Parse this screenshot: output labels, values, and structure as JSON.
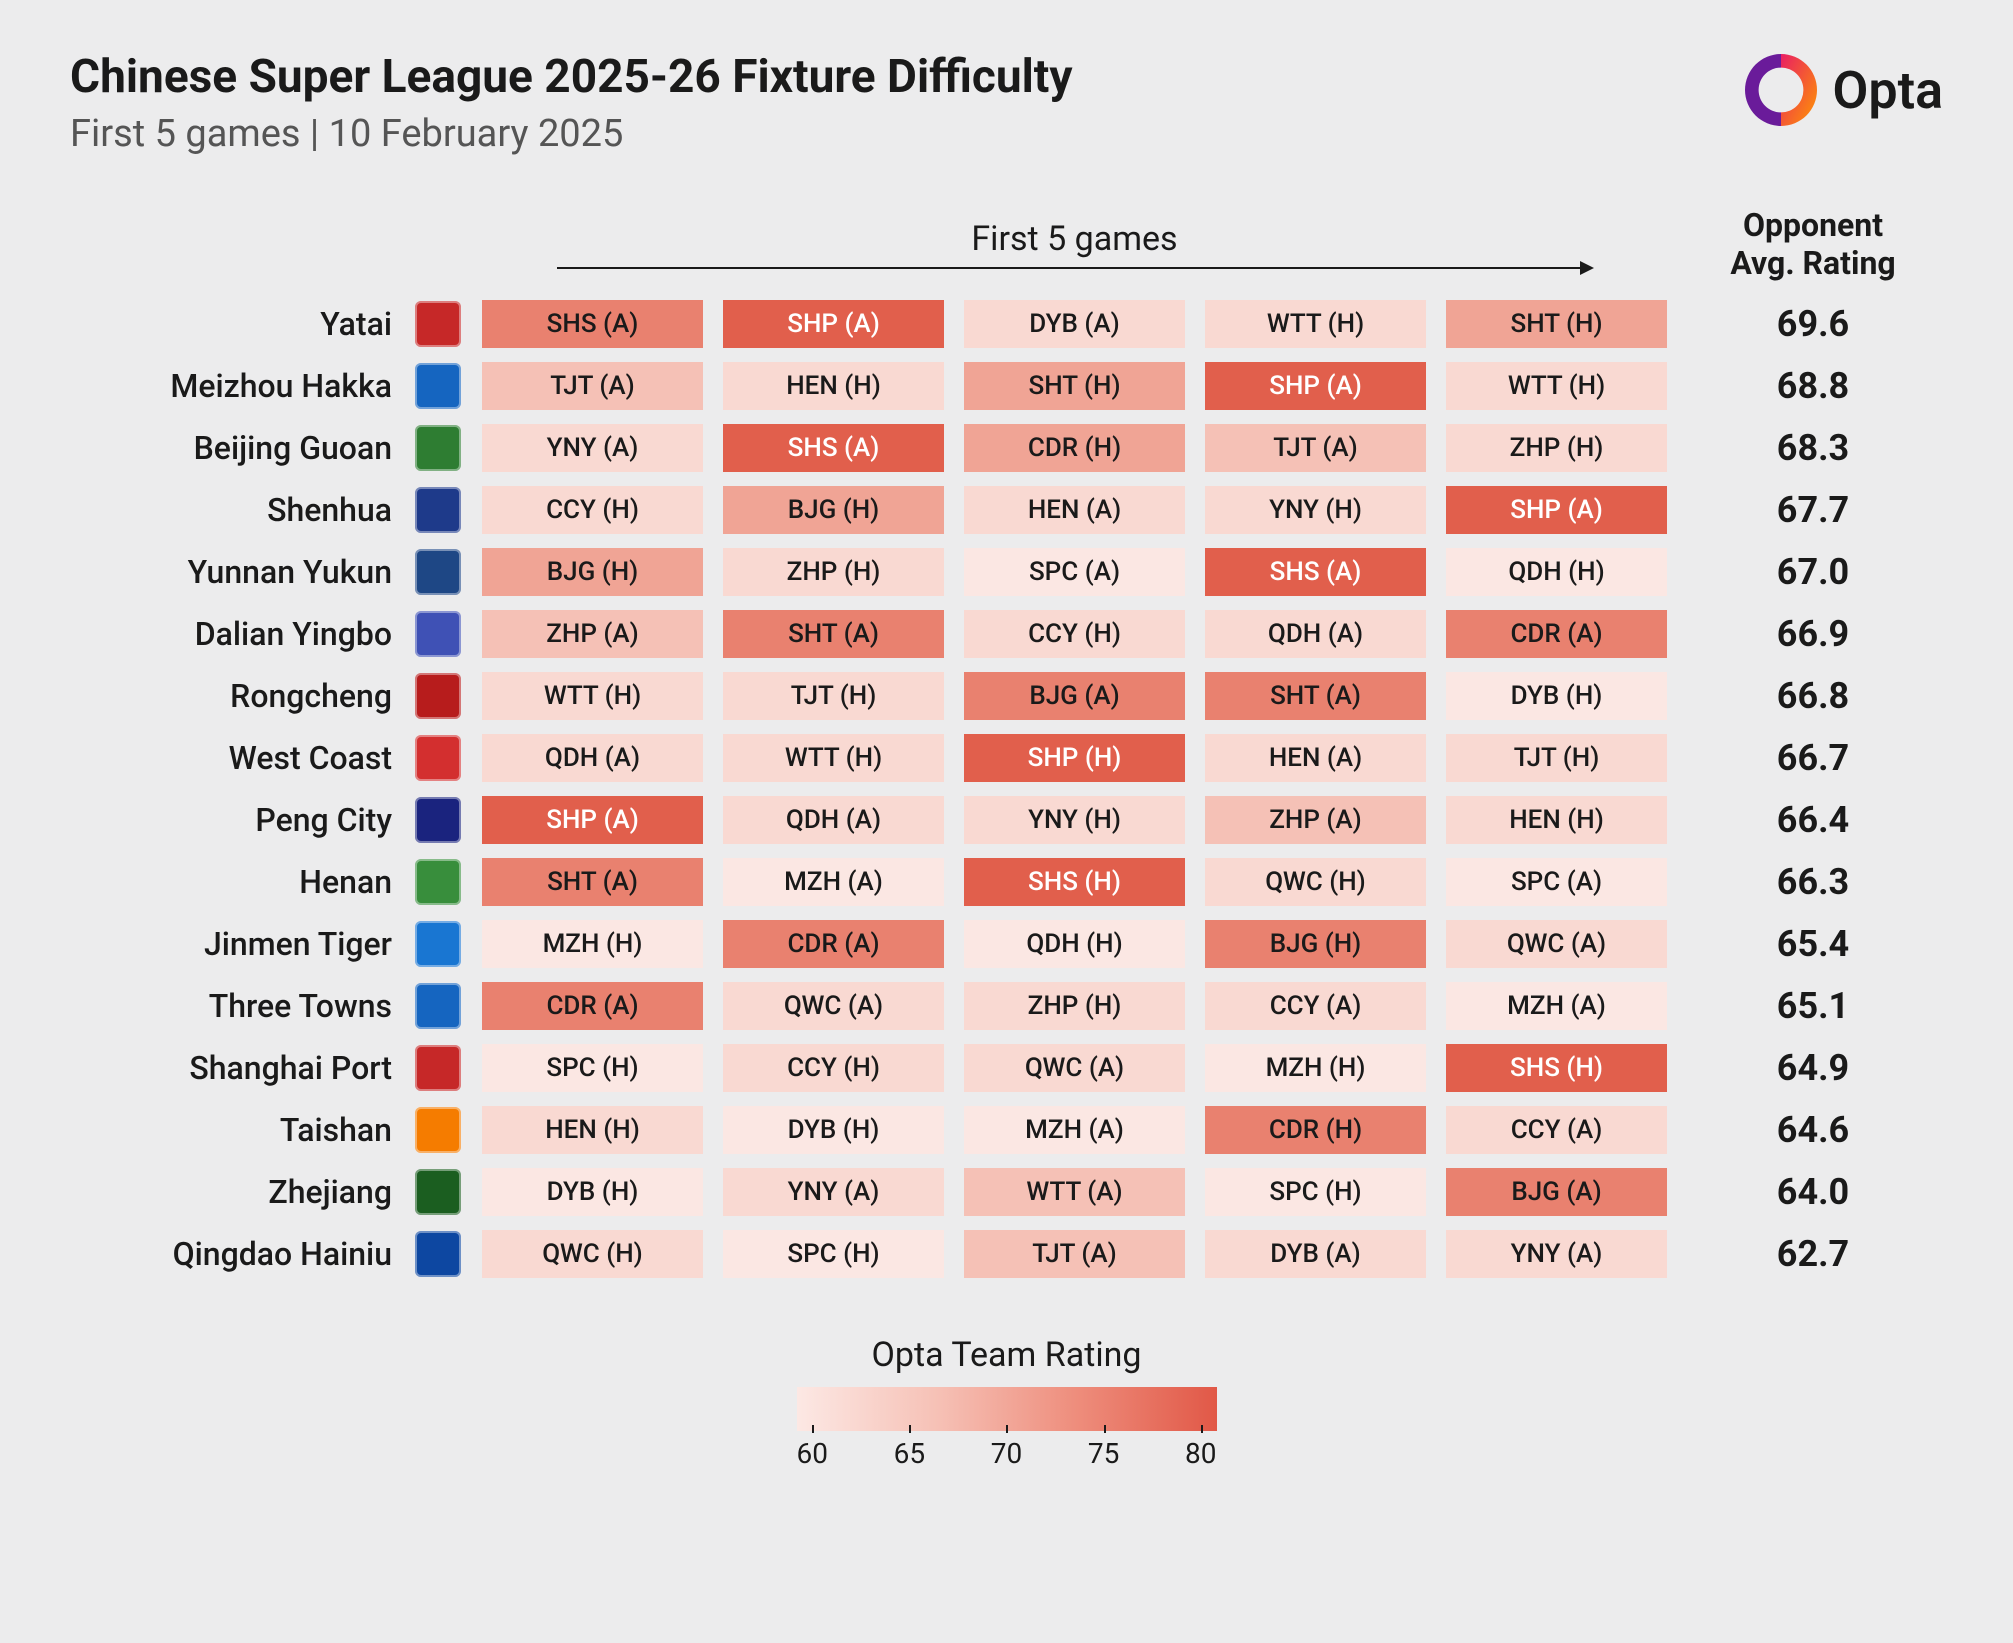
{
  "title": "Chinese Super League 2025-26 Fixture Difficulty",
  "subtitle": "First 5 games | 10 February 2025",
  "brand": "Opta",
  "columns_header": "First 5 games",
  "rating_header_line1": "Opponent",
  "rating_header_line2": "Avg. Rating",
  "legend": {
    "title": "Opta Team Rating",
    "ticks": [
      "60",
      "65",
      "70",
      "75",
      "80"
    ],
    "gradient_start": "#fce8e4",
    "gradient_end": "#e15847"
  },
  "difficulty_scale": {
    "min": 60,
    "max": 80,
    "white_text_threshold": 73
  },
  "cell_colors": {
    "lvl1": "#fbe7e3",
    "lvl2": "#f9d9d2",
    "lvl3": "#f5c1b6",
    "lvl4": "#f0a495",
    "lvl5": "#e9816f",
    "lvl6": "#e15f4c"
  },
  "teams": [
    {
      "name": "Yatai",
      "crest_bg": "#c62828",
      "rating": "69.6",
      "fixtures": [
        {
          "label": "SHS (A)",
          "lvl": 5
        },
        {
          "label": "SHP (A)",
          "lvl": 6
        },
        {
          "label": "DYB (A)",
          "lvl": 2
        },
        {
          "label": "WTT (H)",
          "lvl": 2
        },
        {
          "label": "SHT (H)",
          "lvl": 4
        }
      ]
    },
    {
      "name": "Meizhou Hakka",
      "crest_bg": "#1565c0",
      "rating": "68.8",
      "fixtures": [
        {
          "label": "TJT (A)",
          "lvl": 3
        },
        {
          "label": "HEN (H)",
          "lvl": 2
        },
        {
          "label": "SHT (H)",
          "lvl": 4
        },
        {
          "label": "SHP (A)",
          "lvl": 6
        },
        {
          "label": "WTT (H)",
          "lvl": 2
        }
      ]
    },
    {
      "name": "Beijing Guoan",
      "crest_bg": "#2e7d32",
      "rating": "68.3",
      "fixtures": [
        {
          "label": "YNY (A)",
          "lvl": 2
        },
        {
          "label": "SHS (A)",
          "lvl": 6
        },
        {
          "label": "CDR (H)",
          "lvl": 4
        },
        {
          "label": "TJT (A)",
          "lvl": 3
        },
        {
          "label": "ZHP (H)",
          "lvl": 2
        }
      ]
    },
    {
      "name": "Shenhua",
      "crest_bg": "#1e3a8a",
      "rating": "67.7",
      "fixtures": [
        {
          "label": "CCY (H)",
          "lvl": 2
        },
        {
          "label": "BJG (H)",
          "lvl": 4
        },
        {
          "label": "HEN (A)",
          "lvl": 2
        },
        {
          "label": "YNY (H)",
          "lvl": 2
        },
        {
          "label": "SHP (A)",
          "lvl": 6
        }
      ]
    },
    {
      "name": "Yunnan Yukun",
      "crest_bg": "#1e4785",
      "rating": "67.0",
      "fixtures": [
        {
          "label": "BJG (H)",
          "lvl": 4
        },
        {
          "label": "ZHP (H)",
          "lvl": 2
        },
        {
          "label": "SPC (A)",
          "lvl": 1
        },
        {
          "label": "SHS (A)",
          "lvl": 6
        },
        {
          "label": "QDH (H)",
          "lvl": 1
        }
      ]
    },
    {
      "name": "Dalian Yingbo",
      "crest_bg": "#3f51b5",
      "rating": "66.9",
      "fixtures": [
        {
          "label": "ZHP (A)",
          "lvl": 3
        },
        {
          "label": "SHT (A)",
          "lvl": 5
        },
        {
          "label": "CCY (H)",
          "lvl": 2
        },
        {
          "label": "QDH (A)",
          "lvl": 2
        },
        {
          "label": "CDR (A)",
          "lvl": 5
        }
      ]
    },
    {
      "name": "Rongcheng",
      "crest_bg": "#b71c1c",
      "rating": "66.8",
      "fixtures": [
        {
          "label": "WTT (H)",
          "lvl": 2
        },
        {
          "label": "TJT (H)",
          "lvl": 2
        },
        {
          "label": "BJG (A)",
          "lvl": 5
        },
        {
          "label": "SHT (A)",
          "lvl": 5
        },
        {
          "label": "DYB (H)",
          "lvl": 1
        }
      ]
    },
    {
      "name": "West Coast",
      "crest_bg": "#d32f2f",
      "rating": "66.7",
      "fixtures": [
        {
          "label": "QDH (A)",
          "lvl": 2
        },
        {
          "label": "WTT (H)",
          "lvl": 2
        },
        {
          "label": "SHP (H)",
          "lvl": 6
        },
        {
          "label": "HEN (A)",
          "lvl": 2
        },
        {
          "label": "TJT (H)",
          "lvl": 2
        }
      ]
    },
    {
      "name": "Peng City",
      "crest_bg": "#1a237e",
      "rating": "66.4",
      "fixtures": [
        {
          "label": "SHP (A)",
          "lvl": 6
        },
        {
          "label": "QDH (A)",
          "lvl": 2
        },
        {
          "label": "YNY (H)",
          "lvl": 2
        },
        {
          "label": "ZHP (A)",
          "lvl": 3
        },
        {
          "label": "HEN (H)",
          "lvl": 2
        }
      ]
    },
    {
      "name": "Henan",
      "crest_bg": "#388e3c",
      "rating": "66.3",
      "fixtures": [
        {
          "label": "SHT (A)",
          "lvl": 5
        },
        {
          "label": "MZH (A)",
          "lvl": 1
        },
        {
          "label": "SHS (H)",
          "lvl": 6
        },
        {
          "label": "QWC (H)",
          "lvl": 2
        },
        {
          "label": "SPC (A)",
          "lvl": 1
        }
      ]
    },
    {
      "name": "Jinmen Tiger",
      "crest_bg": "#1976d2",
      "rating": "65.4",
      "fixtures": [
        {
          "label": "MZH (H)",
          "lvl": 1
        },
        {
          "label": "CDR (A)",
          "lvl": 5
        },
        {
          "label": "QDH (H)",
          "lvl": 1
        },
        {
          "label": "BJG (H)",
          "lvl": 5
        },
        {
          "label": "QWC (A)",
          "lvl": 2
        }
      ]
    },
    {
      "name": "Three Towns",
      "crest_bg": "#1565c0",
      "rating": "65.1",
      "fixtures": [
        {
          "label": "CDR (A)",
          "lvl": 5
        },
        {
          "label": "QWC (A)",
          "lvl": 2
        },
        {
          "label": "ZHP (H)",
          "lvl": 2
        },
        {
          "label": "CCY (A)",
          "lvl": 2
        },
        {
          "label": "MZH (A)",
          "lvl": 1
        }
      ]
    },
    {
      "name": "Shanghai Port",
      "crest_bg": "#c62828",
      "rating": "64.9",
      "fixtures": [
        {
          "label": "SPC (H)",
          "lvl": 1
        },
        {
          "label": "CCY (H)",
          "lvl": 2
        },
        {
          "label": "QWC (A)",
          "lvl": 2
        },
        {
          "label": "MZH (H)",
          "lvl": 1
        },
        {
          "label": "SHS (H)",
          "lvl": 6
        }
      ]
    },
    {
      "name": "Taishan",
      "crest_bg": "#f57c00",
      "rating": "64.6",
      "fixtures": [
        {
          "label": "HEN (H)",
          "lvl": 2
        },
        {
          "label": "DYB (H)",
          "lvl": 1
        },
        {
          "label": "MZH (A)",
          "lvl": 1
        },
        {
          "label": "CDR (H)",
          "lvl": 5
        },
        {
          "label": "CCY (A)",
          "lvl": 2
        }
      ]
    },
    {
      "name": "Zhejiang",
      "crest_bg": "#1b5e20",
      "rating": "64.0",
      "fixtures": [
        {
          "label": "DYB (H)",
          "lvl": 1
        },
        {
          "label": "YNY (A)",
          "lvl": 2
        },
        {
          "label": "WTT (A)",
          "lvl": 3
        },
        {
          "label": "SPC (H)",
          "lvl": 1
        },
        {
          "label": "BJG (A)",
          "lvl": 5
        }
      ]
    },
    {
      "name": "Qingdao Hainiu",
      "crest_bg": "#0d47a1",
      "rating": "62.7",
      "fixtures": [
        {
          "label": "QWC (H)",
          "lvl": 2
        },
        {
          "label": "SPC (H)",
          "lvl": 1
        },
        {
          "label": "TJT (A)",
          "lvl": 3
        },
        {
          "label": "DYB (A)",
          "lvl": 2
        },
        {
          "label": "YNY (A)",
          "lvl": 2
        }
      ]
    }
  ]
}
